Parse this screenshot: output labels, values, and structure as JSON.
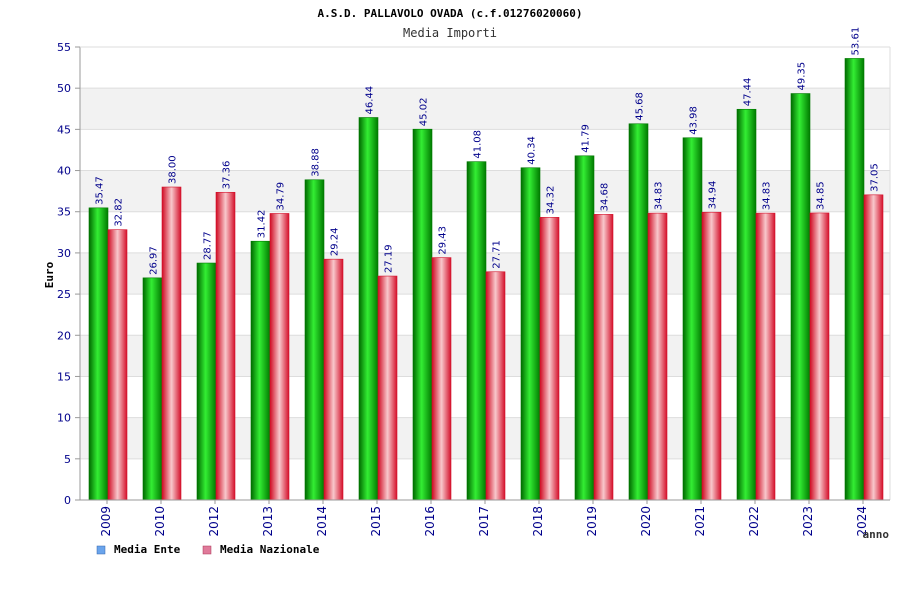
{
  "chart_data": {
    "type": "bar",
    "title": "A.S.D. PALLAVOLO OVADA (c.f.01276020060)",
    "subtitle": "Media Importi",
    "xlabel": "anno",
    "ylabel": "Euro",
    "ylim": [
      0,
      55
    ],
    "yticks": [
      0,
      5,
      10,
      15,
      20,
      25,
      30,
      35,
      40,
      45,
      50,
      55
    ],
    "grid": true,
    "legend_position": "bottom-left",
    "categories": [
      "2009",
      "2010",
      "2012",
      "2013",
      "2014",
      "2015",
      "2016",
      "2017",
      "2018",
      "2019",
      "2020",
      "2021",
      "2022",
      "2023",
      "2024"
    ],
    "series": [
      {
        "name": "Media Ente",
        "values": [
          35.47,
          26.97,
          28.77,
          31.42,
          38.88,
          46.44,
          45.02,
          41.08,
          40.34,
          41.79,
          45.68,
          43.98,
          47.44,
          49.35,
          53.61
        ],
        "labels": [
          "35.47",
          "26.97",
          "28.77",
          "31.42",
          "38.88",
          "46.44",
          "45.02",
          "41.08",
          "40.34",
          "41.79",
          "45.68",
          "43.98",
          "47.44",
          "49.35",
          "53.61"
        ]
      },
      {
        "name": "Media Nazionale",
        "values": [
          32.82,
          38.0,
          37.36,
          34.79,
          29.24,
          27.19,
          29.43,
          27.71,
          34.32,
          34.68,
          34.83,
          34.94,
          34.83,
          34.85,
          37.05
        ],
        "labels": [
          "32.82",
          "38.00",
          "37.36",
          "34.79",
          "29.24",
          "27.19",
          "29.43",
          "27.71",
          "34.32",
          "34.68",
          "34.83",
          "34.94",
          "34.83",
          "34.85",
          "37.05"
        ]
      }
    ]
  },
  "colors": {
    "ente_dark": "#007a00",
    "ente_light": "#22dd22",
    "naz_dark": "#d4102a",
    "naz_light": "#f8c4c8",
    "legend_ente": "#6aa4ec",
    "legend_naz": "#e07a9a",
    "axis_text": "#00008b",
    "band": "#f2f2f2"
  }
}
